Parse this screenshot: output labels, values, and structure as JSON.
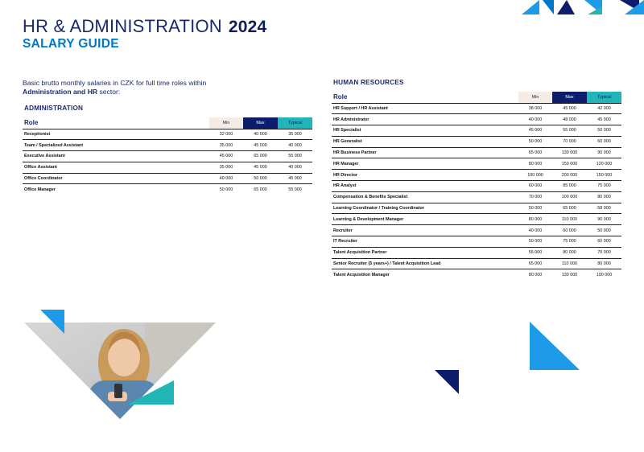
{
  "header": {
    "title": "HR & ADMINISTRATION",
    "year": "2024",
    "subtitle": "SALARY GUIDE"
  },
  "intro": {
    "line1": "Basic brutto monthly salaries in CZK for full time roles within",
    "bold1": "Administration and HR",
    "tail": " sector:"
  },
  "columns": {
    "role": "Role",
    "min": "Min",
    "max": "Max",
    "typical": "Typical"
  },
  "administration": {
    "heading": "ADMINISTRATION",
    "rows": [
      {
        "role": "Receptionist",
        "min": "32 000",
        "max": "40 000",
        "typical": "35 000"
      },
      {
        "role": "Team / Specialized Assistant",
        "min": "35 000",
        "max": "45 000",
        "typical": "40 000"
      },
      {
        "role": "Executive Assistant",
        "min": "45 000",
        "max": "65 000",
        "typical": "55 000"
      },
      {
        "role": "Office Assistant",
        "min": "35 000",
        "max": "45 000",
        "typical": "40 000"
      },
      {
        "role": "Office Coordinator",
        "min": "40 000",
        "max": "50 000",
        "typical": "45 000"
      },
      {
        "role": "Office Manager",
        "min": "50 000",
        "max": "65 000",
        "typical": "55 000"
      }
    ]
  },
  "human_resources": {
    "heading": "HUMAN RESOURCES",
    "rows": [
      {
        "role": "HR Support / HR Assistant",
        "min": "38 000",
        "max": "45 000",
        "typical": "42 000"
      },
      {
        "role": "HR Administrator",
        "min": "40 000",
        "max": "48 000",
        "typical": "45 000"
      },
      {
        "role": "HR Specialist",
        "min": "45 000",
        "max": "55 000",
        "typical": "50 000"
      },
      {
        "role": "HR Generalist",
        "min": "50 000",
        "max": "70 000",
        "typical": "60 000"
      },
      {
        "role": "HR Business Partner",
        "min": "65 000",
        "max": "130 000",
        "typical": "90 000"
      },
      {
        "role": "HR Manager",
        "min": "80 000",
        "max": "150 000",
        "typical": "120 000"
      },
      {
        "role": "HR Director",
        "min": "100 000",
        "max": "200 000",
        "typical": "150 000"
      },
      {
        "role": "HR Analyst",
        "min": "60 000",
        "max": "85 000",
        "typical": "75 000"
      },
      {
        "role": "Compensation & Benefits Specialist",
        "min": "70 000",
        "max": "100 000",
        "typical": "80 000"
      },
      {
        "role": "Learning Coordinator / Training Coordinator",
        "min": "50 000",
        "max": "65 000",
        "typical": "58 000"
      },
      {
        "role": "Learning & Development Manager",
        "min": "80 000",
        "max": "110 000",
        "typical": "90 000"
      },
      {
        "role": "Recruiter",
        "min": "40 000",
        "max": "60 000",
        "typical": "50 000"
      },
      {
        "role": "IT Recruiter",
        "min": "50 000",
        "max": "75 000",
        "typical": "60 000"
      },
      {
        "role": "Talent Acquisition Partner",
        "min": "55 000",
        "max": "80 000",
        "typical": "70 000"
      },
      {
        "role": "Senior Recruiter (5 years+) / Talent Acquisition Lead",
        "min": "65 000",
        "max": "110 000",
        "typical": "80 000"
      },
      {
        "role": "Talent Acquisition Manager",
        "min": "80 000",
        "max": "130 000",
        "typical": "100 000"
      }
    ]
  },
  "colors": {
    "navy": "#0d1c6b",
    "teal": "#21b6b5",
    "blue": "#0077c8",
    "light_blue": "#1e9be8",
    "beige": "#f5ece5"
  }
}
